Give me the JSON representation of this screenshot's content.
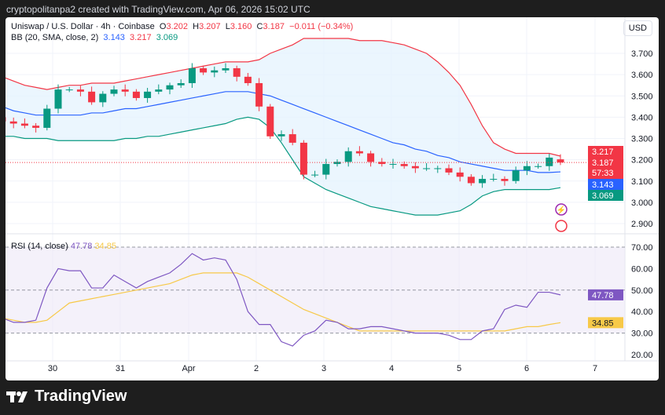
{
  "header": {
    "caption": "cryptopolitanpa2 created with TradingView.com, Apr 06, 2026 15:02 UTC"
  },
  "legend": {
    "symbol": "Uniswap / U.S. Dollar · 4h · Coinbase",
    "o_label": "O",
    "o": "3.202",
    "h_label": "H",
    "h": "3.207",
    "l_label": "L",
    "l": "3.160",
    "c_label": "C",
    "c": "3.187",
    "change": "−0.011 (−0.34%)",
    "bb_label": "BB (20, SMA, close, 2)",
    "bb_basis": "3.143",
    "bb_upper": "3.217",
    "bb_lower": "3.069",
    "rsi_label": "RSI (14, close)",
    "rsi": "47.78",
    "rsi_ma": "34.85"
  },
  "currency_button": "USD",
  "brand": "TradingView",
  "colors": {
    "up": "#089981",
    "down": "#f23645",
    "basis": "#2962ff",
    "upper": "#f23645",
    "lower": "#089981",
    "band_fill": "#e3f2fd",
    "rsi": "#7e57c2",
    "rsi_ma": "#f7c948",
    "rsi_fill": "#ede7f6"
  },
  "chart_data": [
    {
      "type": "candlestick",
      "title": "Uniswap / U.S. Dollar · 4h · Coinbase",
      "ylim": [
        2.85,
        3.78
      ],
      "yticks": [
        "3.700",
        "3.600",
        "3.500",
        "3.400",
        "3.300",
        "3.200",
        "3.100",
        "3.000",
        "2.900"
      ],
      "xticks": [
        "30",
        "31",
        "Apr",
        "2",
        "3",
        "4",
        "5",
        "6",
        "7"
      ],
      "price_labels": {
        "upper": "3.217",
        "last": "3.187",
        "countdown": "57:33",
        "basis": "3.143",
        "lower": "3.069"
      },
      "close": [
        3.38,
        3.37,
        3.36,
        3.35,
        3.44,
        3.53,
        3.53,
        3.52,
        3.47,
        3.51,
        3.53,
        3.52,
        3.49,
        3.52,
        3.53,
        3.55,
        3.56,
        3.63,
        3.61,
        3.62,
        3.63,
        3.59,
        3.56,
        3.45,
        3.31,
        3.32,
        3.28,
        3.13,
        3.13,
        3.18,
        3.19,
        3.24,
        3.23,
        3.19,
        3.18,
        3.18,
        3.17,
        3.16,
        3.16,
        3.16,
        3.14,
        3.12,
        3.09,
        3.11,
        3.11,
        3.1,
        3.15,
        3.17,
        3.17,
        3.21,
        3.187
      ],
      "bb_basis": [
        3.45,
        3.43,
        3.42,
        3.41,
        3.41,
        3.41,
        3.41,
        3.41,
        3.42,
        3.42,
        3.43,
        3.44,
        3.44,
        3.45,
        3.46,
        3.47,
        3.48,
        3.49,
        3.5,
        3.51,
        3.52,
        3.52,
        3.52,
        3.51,
        3.5,
        3.48,
        3.46,
        3.44,
        3.42,
        3.4,
        3.38,
        3.36,
        3.34,
        3.32,
        3.3,
        3.28,
        3.27,
        3.25,
        3.24,
        3.22,
        3.21,
        3.19,
        3.18,
        3.17,
        3.16,
        3.15,
        3.15,
        3.15,
        3.14,
        3.14,
        3.143
      ],
      "bb_upper": [
        3.59,
        3.57,
        3.55,
        3.54,
        3.53,
        3.54,
        3.55,
        3.55,
        3.56,
        3.56,
        3.56,
        3.57,
        3.58,
        3.59,
        3.6,
        3.61,
        3.62,
        3.63,
        3.64,
        3.65,
        3.66,
        3.66,
        3.66,
        3.67,
        3.7,
        3.72,
        3.74,
        3.77,
        3.77,
        3.77,
        3.77,
        3.77,
        3.76,
        3.76,
        3.76,
        3.75,
        3.74,
        3.72,
        3.7,
        3.66,
        3.61,
        3.55,
        3.46,
        3.36,
        3.28,
        3.25,
        3.23,
        3.23,
        3.23,
        3.23,
        3.217
      ],
      "bb_lower": [
        3.31,
        3.31,
        3.3,
        3.3,
        3.3,
        3.29,
        3.29,
        3.29,
        3.29,
        3.29,
        3.29,
        3.3,
        3.3,
        3.31,
        3.31,
        3.32,
        3.33,
        3.34,
        3.35,
        3.36,
        3.37,
        3.39,
        3.4,
        3.39,
        3.35,
        3.28,
        3.2,
        3.12,
        3.09,
        3.06,
        3.04,
        3.02,
        3.0,
        2.98,
        2.97,
        2.96,
        2.95,
        2.94,
        2.94,
        2.94,
        2.95,
        2.96,
        2.99,
        3.03,
        3.05,
        3.06,
        3.06,
        3.06,
        3.06,
        3.06,
        3.069
      ]
    },
    {
      "type": "line",
      "title": "RSI (14, close)",
      "ylim": [
        16,
        73
      ],
      "yticks": [
        "70.00",
        "60.00",
        "50.00",
        "40.00",
        "30.00",
        "20.00"
      ],
      "bands": [
        30,
        50,
        70
      ],
      "price_labels": {
        "rsi": "47.78",
        "rsi_ma": "34.85"
      },
      "rsi": [
        37,
        35,
        35,
        36,
        51,
        60,
        59,
        59,
        51,
        51,
        57,
        54,
        51,
        54,
        56,
        58,
        62,
        67,
        64,
        65,
        64,
        55,
        40,
        34,
        34,
        26,
        24,
        29,
        31,
        36,
        35,
        32,
        32,
        33,
        33,
        32,
        31,
        30,
        30,
        30,
        29,
        27,
        27,
        31,
        32,
        41,
        43,
        42,
        49,
        49,
        47.78
      ],
      "rsi_ma": [
        37,
        36,
        35,
        35,
        36,
        40,
        44,
        45,
        46,
        47,
        48,
        49,
        50,
        51,
        52,
        53,
        55,
        57,
        58,
        58,
        58,
        58,
        56,
        53,
        50,
        47,
        44,
        41,
        39,
        37,
        35,
        33,
        31,
        31,
        31,
        31,
        31,
        31,
        31,
        31,
        31,
        31,
        31,
        31,
        31,
        31,
        32,
        33,
        33,
        34,
        34.85
      ]
    }
  ]
}
